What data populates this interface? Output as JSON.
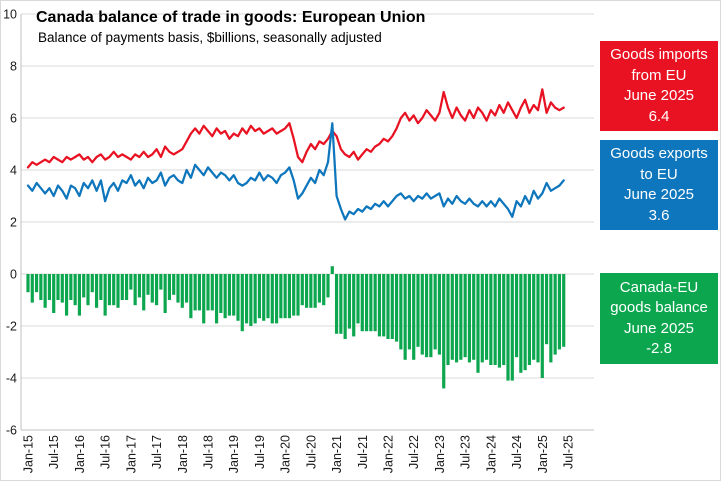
{
  "header": {
    "title": "Canada balance of trade in goods: European Union",
    "subtitle": "Balance of payments basis, $billions, seasonally adjusted"
  },
  "callouts": {
    "imports": {
      "color": "#E81222",
      "lines": [
        "Goods imports",
        "from EU",
        "June 2025",
        "6.4"
      ]
    },
    "exports": {
      "color": "#0E76BC",
      "lines": [
        "Goods exports",
        "to EU",
        "June 2025",
        "3.6"
      ]
    },
    "balance": {
      "color": "#0CA64F",
      "lines": [
        "Canada-EU",
        "goods balance",
        "June 2025",
        "-2.8"
      ]
    }
  },
  "chart_data": {
    "type": "combo",
    "title": "Canada balance of trade in goods: European Union",
    "subtitle": "Balance of payments basis, $billions, seasonally adjusted",
    "x_unit": "month",
    "x_start": "Jan-2015",
    "x_end": "Jun-2025",
    "n_points": 126,
    "x_ticks_every": 6,
    "x_tick_labels": [
      "Jan-15",
      "Jul-15",
      "Jan-16",
      "Jul-16",
      "Jan-17",
      "Jul-17",
      "Jan-18",
      "Jul-18",
      "Jan-19",
      "Jul-19",
      "Jan-20",
      "Jul-20",
      "Jan-21",
      "Jul-21",
      "Jan-22",
      "Jul-22",
      "Jan-23",
      "Jul-23",
      "Jan-24",
      "Jul-24",
      "Jan-25",
      "Jul-25"
    ],
    "ylim": [
      -6,
      10
    ],
    "y_ticks": [
      10,
      8,
      6,
      4,
      2,
      0,
      -2,
      -4,
      -6
    ],
    "grid": "horizontal",
    "colors": {
      "gridline": "#dadada",
      "axis": "#c0c0c0",
      "tick_text": "#1a1a1a"
    },
    "series": [
      {
        "name": "Goods imports from EU",
        "type": "line",
        "color": "#E81222",
        "values": [
          4.1,
          4.3,
          4.2,
          4.3,
          4.4,
          4.3,
          4.5,
          4.4,
          4.3,
          4.5,
          4.4,
          4.5,
          4.6,
          4.4,
          4.5,
          4.3,
          4.5,
          4.6,
          4.4,
          4.5,
          4.7,
          4.5,
          4.6,
          4.5,
          4.4,
          4.6,
          4.5,
          4.7,
          4.5,
          4.6,
          4.8,
          4.5,
          4.9,
          4.7,
          4.6,
          4.7,
          4.8,
          5.1,
          5.4,
          5.6,
          5.4,
          5.7,
          5.5,
          5.3,
          5.6,
          5.4,
          5.5,
          5.2,
          5.4,
          5.3,
          5.6,
          5.4,
          5.7,
          5.5,
          5.6,
          5.4,
          5.5,
          5.6,
          5.4,
          5.5,
          5.6,
          5.8,
          5.2,
          4.5,
          4.3,
          4.7,
          5.0,
          4.8,
          5.1,
          5.0,
          5.2,
          5.5,
          5.3,
          4.8,
          4.6,
          4.5,
          4.7,
          4.4,
          4.6,
          4.8,
          4.7,
          4.9,
          5.0,
          5.2,
          5.1,
          5.3,
          5.6,
          6.0,
          6.2,
          5.9,
          6.1,
          5.8,
          6.0,
          6.3,
          6.1,
          5.9,
          6.2,
          7.0,
          6.4,
          6.0,
          6.4,
          6.1,
          5.9,
          6.3,
          6.0,
          6.4,
          6.2,
          5.9,
          6.3,
          6.1,
          6.5,
          6.2,
          6.6,
          6.3,
          6.0,
          6.4,
          6.7,
          6.2,
          6.5,
          6.3,
          7.1,
          6.2,
          6.6,
          6.4,
          6.3,
          6.4
        ]
      },
      {
        "name": "Goods exports to EU",
        "type": "line",
        "color": "#0E76BC",
        "values": [
          3.4,
          3.2,
          3.5,
          3.3,
          3.1,
          3.3,
          3.0,
          3.4,
          3.2,
          2.9,
          3.4,
          3.3,
          3.0,
          3.5,
          3.3,
          3.6,
          3.2,
          3.6,
          2.8,
          3.3,
          3.5,
          3.2,
          3.6,
          3.5,
          3.8,
          3.4,
          3.6,
          3.3,
          3.7,
          3.5,
          3.6,
          3.9,
          3.4,
          3.7,
          3.8,
          3.6,
          3.5,
          4.0,
          3.7,
          4.2,
          4.0,
          3.8,
          4.1,
          3.9,
          3.7,
          3.9,
          3.8,
          3.6,
          3.8,
          3.5,
          3.4,
          3.5,
          3.7,
          3.6,
          3.9,
          3.6,
          3.8,
          3.7,
          3.5,
          3.8,
          3.9,
          4.1,
          3.6,
          2.9,
          3.1,
          3.4,
          3.7,
          3.5,
          4.0,
          3.8,
          4.3,
          5.8,
          3.0,
          2.5,
          2.1,
          2.4,
          2.3,
          2.5,
          2.4,
          2.6,
          2.5,
          2.7,
          2.6,
          2.8,
          2.6,
          2.8,
          3.0,
          3.1,
          2.9,
          3.0,
          2.8,
          3.0,
          2.9,
          3.1,
          2.9,
          3.0,
          3.1,
          2.6,
          2.9,
          2.7,
          3.0,
          2.8,
          2.7,
          2.9,
          2.7,
          2.6,
          2.8,
          2.6,
          2.8,
          2.6,
          2.9,
          2.7,
          2.5,
          2.2,
          2.8,
          2.6,
          3.0,
          2.7,
          3.2,
          2.9,
          3.1,
          3.5,
          3.2,
          3.3,
          3.4,
          3.6
        ]
      },
      {
        "name": "Canada-EU goods balance",
        "type": "bar",
        "color": "#0CA64F",
        "values": [
          -0.7,
          -1.1,
          -0.7,
          -1.0,
          -1.3,
          -1.0,
          -1.5,
          -1.0,
          -1.1,
          -1.6,
          -1.0,
          -1.2,
          -1.6,
          -0.9,
          -1.2,
          -0.7,
          -1.3,
          -1.0,
          -1.6,
          -1.2,
          -1.2,
          -1.3,
          -1.0,
          -1.0,
          -0.6,
          -1.2,
          -0.9,
          -1.4,
          -0.8,
          -1.1,
          -1.2,
          -0.6,
          -1.5,
          -1.0,
          -0.8,
          -1.1,
          -1.3,
          -1.1,
          -1.7,
          -1.4,
          -1.4,
          -1.9,
          -1.4,
          -1.4,
          -1.9,
          -1.5,
          -1.7,
          -1.6,
          -1.6,
          -1.8,
          -2.2,
          -1.9,
          -2.0,
          -1.9,
          -1.7,
          -1.8,
          -1.7,
          -1.9,
          -1.9,
          -1.7,
          -1.7,
          -1.7,
          -1.6,
          -1.6,
          -1.2,
          -1.3,
          -1.3,
          -1.3,
          -1.1,
          -1.2,
          -0.9,
          0.3,
          -2.3,
          -2.3,
          -2.5,
          -2.1,
          -2.4,
          -1.9,
          -2.2,
          -2.2,
          -2.2,
          -2.2,
          -2.4,
          -2.4,
          -2.5,
          -2.5,
          -2.6,
          -2.9,
          -3.3,
          -2.9,
          -3.3,
          -2.8,
          -3.1,
          -3.2,
          -3.2,
          -2.9,
          -3.1,
          -4.4,
          -3.5,
          -3.3,
          -3.4,
          -3.3,
          -3.2,
          -3.4,
          -3.3,
          -3.8,
          -3.4,
          -3.3,
          -3.5,
          -3.5,
          -3.6,
          -3.5,
          -4.1,
          -4.1,
          -3.2,
          -3.8,
          -3.7,
          -3.5,
          -3.3,
          -3.4,
          -4.0,
          -2.7,
          -3.4,
          -3.1,
          -2.9,
          -2.8
        ]
      }
    ]
  }
}
